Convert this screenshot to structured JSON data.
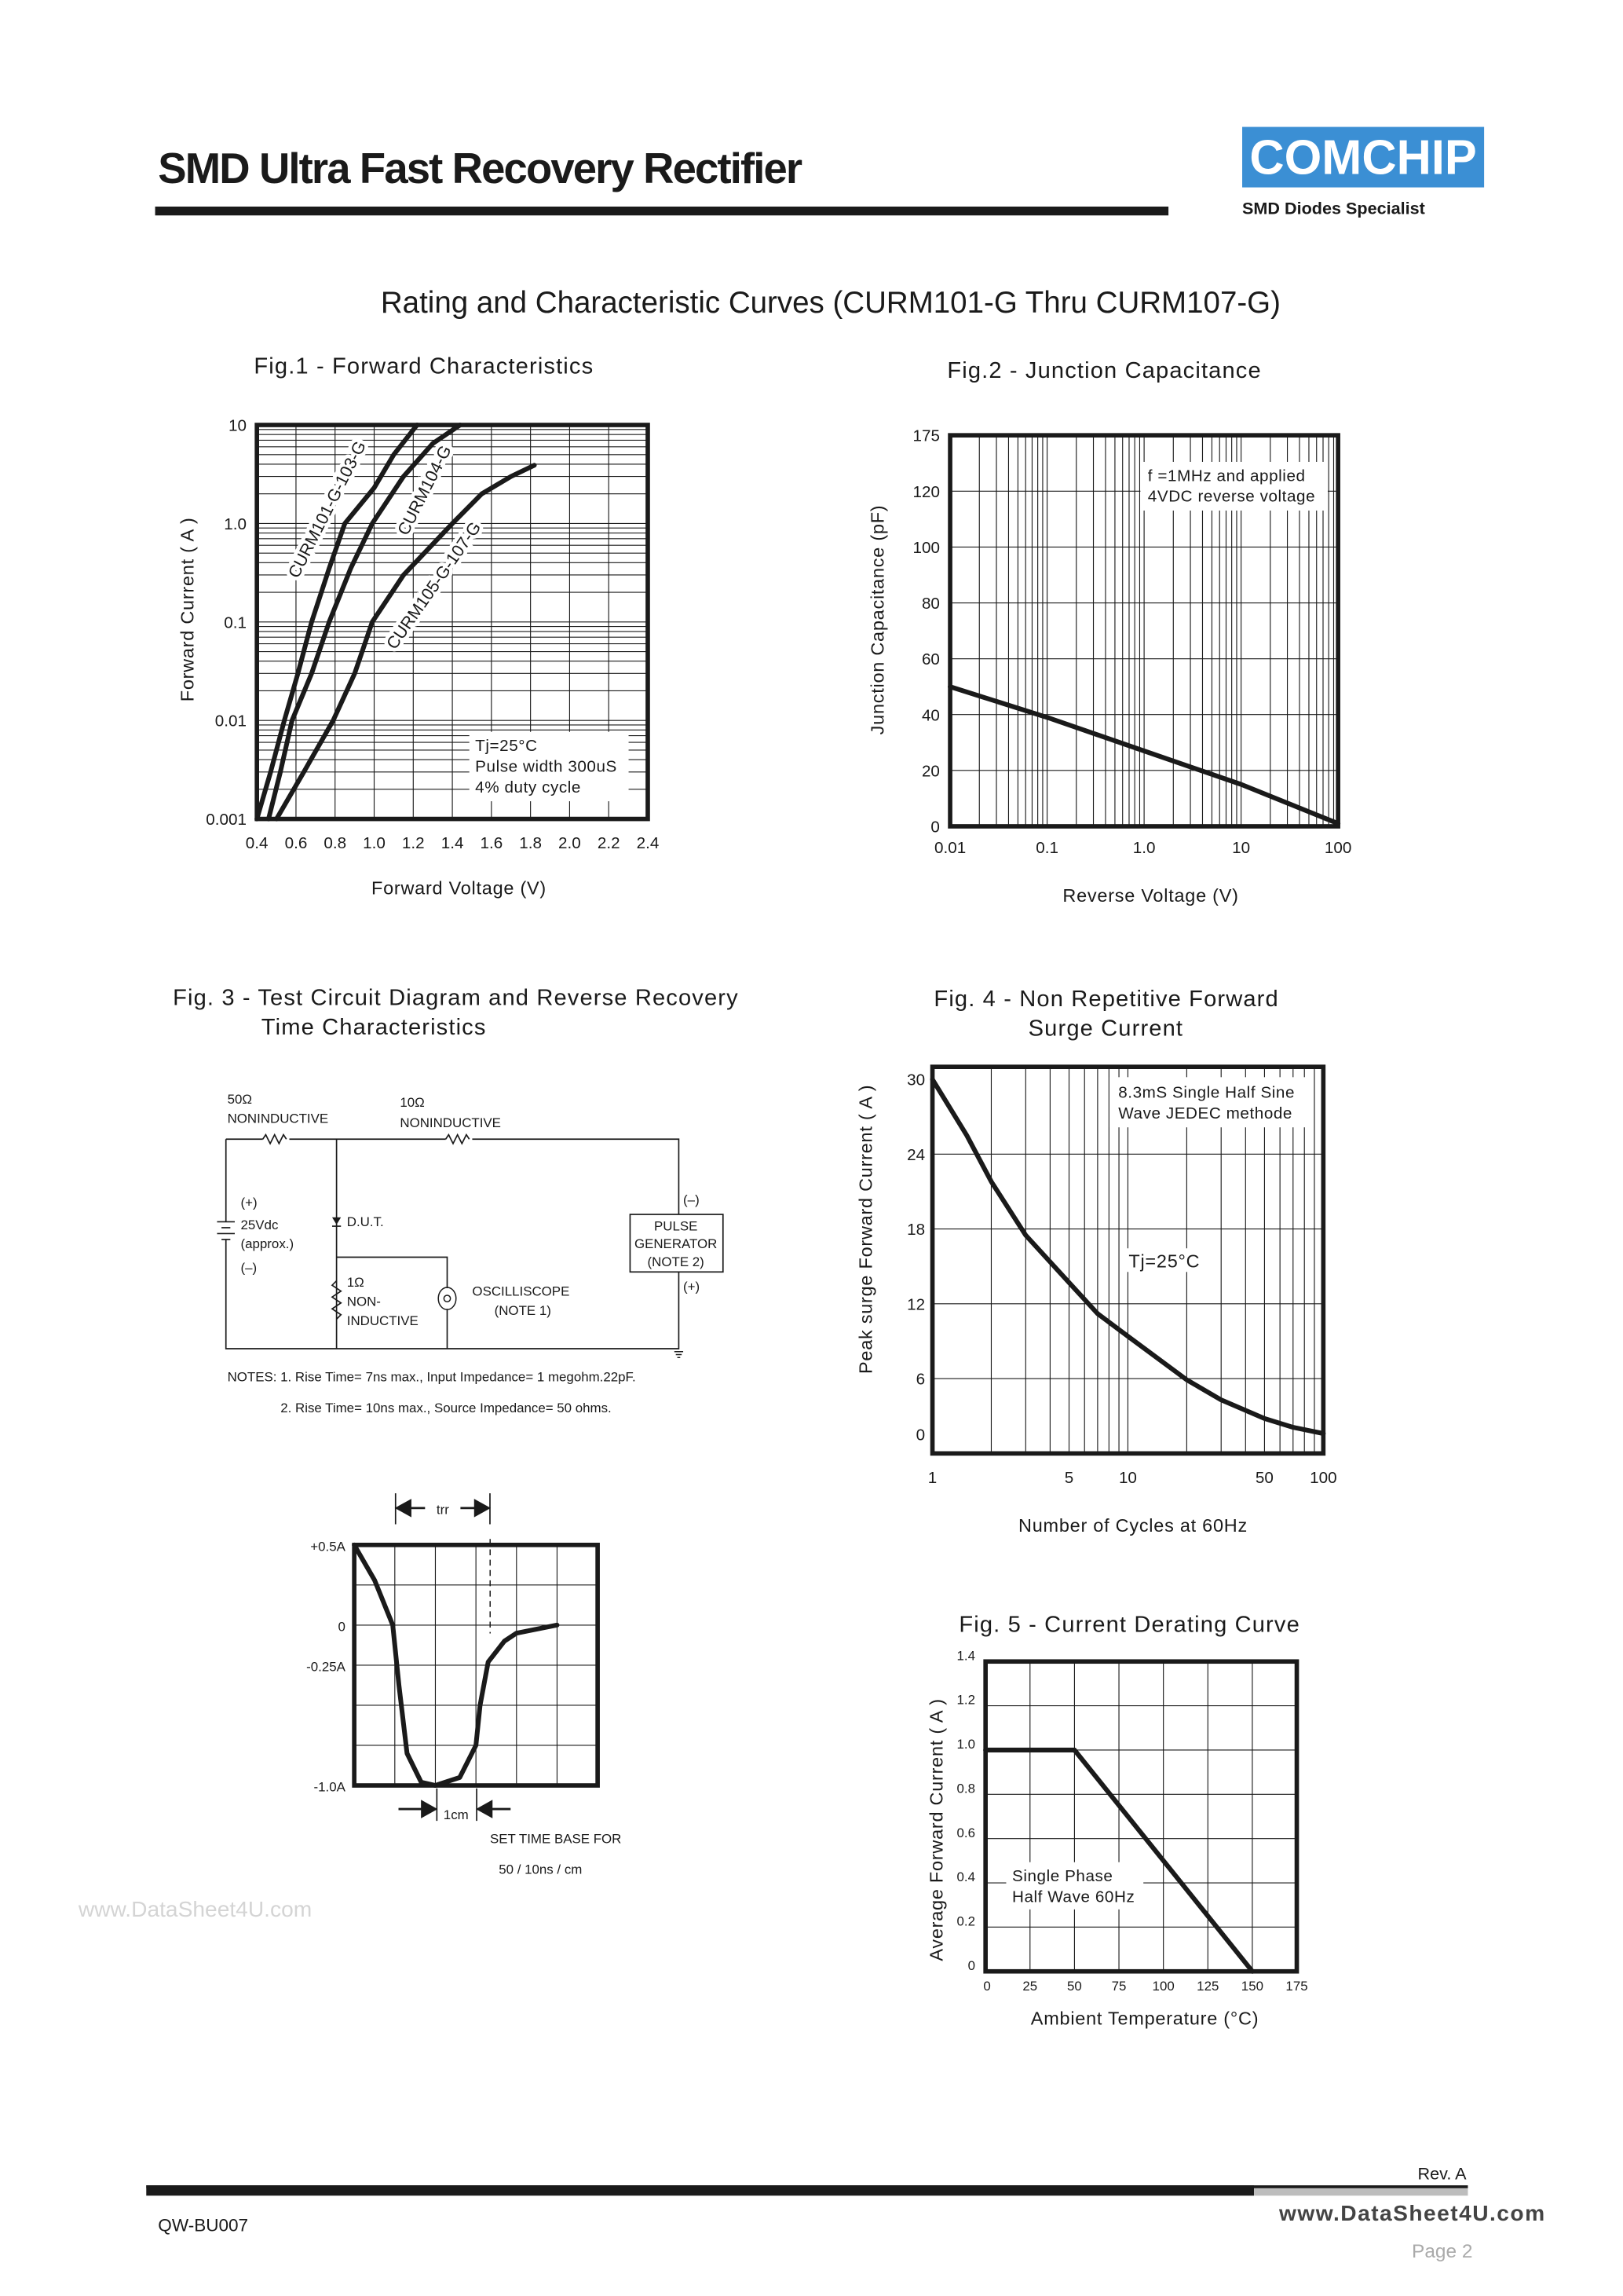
{
  "header": {
    "title": "SMD Ultra Fast Recovery Rectifier",
    "logo_text": "COMCHIP",
    "tagline": "SMD Diodes Specialist",
    "brand_color": "#3b8fd4"
  },
  "page_heading": "Rating and Characteristic Curves (CURM101-G Thru CURM107-G)",
  "fig3": {
    "title_line1": "Fig. 3 - Test Circuit Diagram and Reverse Recovery",
    "title_line2": "Time Characteristics",
    "circuit": {
      "r50_value": "50Ω",
      "r50_type": "NONINDUCTIVE",
      "r10_value": "10Ω",
      "r10_type": "NONINDUCTIVE",
      "batt_plus": "(+)",
      "batt_voltage": "25Vdc",
      "batt_approx": "(approx.)",
      "batt_minus": "(–)",
      "dut": "D.U.T.",
      "r1_value": "1Ω",
      "r1_type1": "NON-",
      "r1_type2": "INDUCTIVE",
      "scope": "OSCILLISCOPE",
      "scope_note": "(NOTE 1)",
      "gen_minus": "(–)",
      "gen_line1": "PULSE",
      "gen_line2": "GENERATOR",
      "gen_line3": "(NOTE 2)",
      "gen_plus": "(+)",
      "note1": "NOTES: 1. Rise Time= 7ns max., Input Impedance= 1 megohm.22pF.",
      "note2": "2. Rise Time= 10ns max., Source Impedance= 50 ohms."
    }
  },
  "watermark": "www.DataSheet4U.com",
  "footer": {
    "rev": "Rev. A",
    "doc_code": "QW-BU007",
    "site": "www.DataSheet4U.com",
    "page": "Page 2"
  },
  "chart_data": [
    {
      "id": "fig1",
      "type": "line",
      "title": "Fig.1 -  Forward Characteristics",
      "xlabel": "Forward Voltage (V)",
      "ylabel": "Forward Current ( A )",
      "xlim": [
        0.4,
        2.4
      ],
      "ylim": [
        0.001,
        10
      ],
      "yscale": "log",
      "grid": true,
      "x_ticks": [
        "0.4",
        "0.6",
        "0.8",
        "1.0",
        "1.2",
        "1.4",
        "1.6",
        "1.8",
        "2.0",
        "2.2",
        "2.4"
      ],
      "y_ticks": [
        "0.001",
        "0.01",
        "0.1",
        "1.0",
        "10"
      ],
      "annotation": [
        "Tj=25°C",
        "Pulse width 300uS",
        "4% duty cycle"
      ],
      "series": [
        {
          "name": "CURM101-G-103-G",
          "points": [
            [
              0.4,
              0.001
            ],
            [
              0.47,
              0.003
            ],
            [
              0.54,
              0.01
            ],
            [
              0.61,
              0.03
            ],
            [
              0.68,
              0.1
            ],
            [
              0.77,
              0.35
            ],
            [
              0.85,
              1
            ],
            [
              1.0,
              2.3
            ],
            [
              1.1,
              5
            ],
            [
              1.22,
              10
            ]
          ]
        },
        {
          "name": "CURM104-G",
          "points": [
            [
              0.46,
              0.001
            ],
            [
              0.52,
              0.003
            ],
            [
              0.58,
              0.01
            ],
            [
              0.68,
              0.03
            ],
            [
              0.77,
              0.1
            ],
            [
              0.88,
              0.35
            ],
            [
              0.99,
              1
            ],
            [
              1.15,
              3
            ],
            [
              1.3,
              6.5
            ],
            [
              1.44,
              10
            ]
          ]
        },
        {
          "name": "CURM105-G-107-G",
          "points": [
            [
              0.5,
              0.001
            ],
            [
              0.64,
              0.003
            ],
            [
              0.79,
              0.01
            ],
            [
              0.9,
              0.03
            ],
            [
              0.99,
              0.1
            ],
            [
              1.15,
              0.3
            ],
            [
              1.4,
              1
            ],
            [
              1.55,
              2
            ],
            [
              1.7,
              3
            ],
            [
              1.82,
              3.9
            ]
          ]
        }
      ]
    },
    {
      "id": "fig2",
      "type": "line",
      "title": "Fig.2 -  Junction Capacitance",
      "xlabel": "Reverse Voltage (V)",
      "ylabel": "Junction Capacitance  (pF)",
      "xlim": [
        0.01,
        100
      ],
      "xscale": "log",
      "grid": true,
      "x_ticks": [
        "0.01",
        "0.1",
        "1.0",
        "10",
        "100"
      ],
      "y_ticks": [
        "0",
        "20",
        "40",
        "60",
        "80",
        "100",
        "120",
        "175"
      ],
      "annotation": [
        "f =1MHz and applied",
        "4VDC reverse voltage"
      ],
      "series": [
        {
          "points": [
            [
              0.01,
              50
            ],
            [
              0.1,
              39
            ],
            [
              1,
              27
            ],
            [
              10,
              15
            ],
            [
              100,
              1
            ]
          ]
        }
      ]
    },
    {
      "id": "fig3-waveform",
      "type": "line",
      "xlabel": "",
      "ylabel": "",
      "grid": true,
      "y_ticks": [
        "+0.5A",
        "0",
        "-0.25A",
        "-1.0A"
      ],
      "ylim": [
        -1.0,
        0.5
      ],
      "xlim": [
        0,
        6
      ],
      "trr_label": "trr",
      "scale_label": "1cm",
      "timebase_line1": "SET TIME BASE FOR",
      "timebase_line2": "50 / 10ns / cm",
      "series": [
        {
          "points": [
            [
              0,
              0.5
            ],
            [
              0.5,
              0.28
            ],
            [
              0.95,
              0
            ],
            [
              1.1,
              -0.375
            ],
            [
              1.3,
              -0.8
            ],
            [
              1.65,
              -0.98
            ],
            [
              2,
              -1.0
            ],
            [
              2.6,
              -0.95
            ],
            [
              3,
              -0.75
            ],
            [
              3.1,
              -0.5
            ],
            [
              3.3,
              -0.23
            ],
            [
              3.7,
              -0.1
            ],
            [
              4,
              -0.05
            ],
            [
              5,
              0
            ]
          ]
        }
      ]
    },
    {
      "id": "fig4",
      "type": "line",
      "title_line1": "Fig. 4 -  Non Repetitive Forward",
      "title_line2": "Surge Current",
      "xlabel": "Number of Cycles at 60Hz",
      "ylabel": "Peak surge Forward Current ( A )",
      "xlim": [
        1,
        100
      ],
      "xscale": "log",
      "ylim": [
        0,
        30
      ],
      "grid": true,
      "x_ticks": [
        "1",
        "5",
        "10",
        "50",
        "100"
      ],
      "y_ticks": [
        "0",
        "6",
        "12",
        "18",
        "24",
        "30"
      ],
      "annotation": [
        "8.3mS Single Half Sine",
        "Wave JEDEC methode",
        "Tj=25°C"
      ],
      "series": [
        {
          "points": [
            [
              1,
              30
            ],
            [
              1.5,
              25.5
            ],
            [
              2,
              21.8
            ],
            [
              3,
              17.5
            ],
            [
              5,
              13.7
            ],
            [
              7,
              11.2
            ],
            [
              10,
              9.4
            ],
            [
              20,
              5.9
            ],
            [
              30,
              4.3
            ],
            [
              50,
              2.8
            ],
            [
              70,
              2.1
            ],
            [
              100,
              1.6
            ]
          ]
        }
      ]
    },
    {
      "id": "fig5",
      "type": "line",
      "title": "Fig. 5 - Current Derating Curve",
      "xlabel": "Ambient Temperature (°C)",
      "ylabel": "Average Forward Current ( A )",
      "xlim": [
        0,
        175
      ],
      "ylim": [
        0,
        1.4
      ],
      "grid": true,
      "x_ticks": [
        "0",
        "25",
        "50",
        "75",
        "100",
        "125",
        "150",
        "175"
      ],
      "y_ticks": [
        "0",
        "0.2",
        "0.4",
        "0.6",
        "0.8",
        "1.0",
        "1.2",
        "1.4"
      ],
      "annotation": [
        "Single Phase",
        "Half Wave 60Hz"
      ],
      "series": [
        {
          "points": [
            [
              0,
              1.0
            ],
            [
              50,
              1.0
            ],
            [
              150,
              0
            ]
          ]
        }
      ]
    }
  ]
}
